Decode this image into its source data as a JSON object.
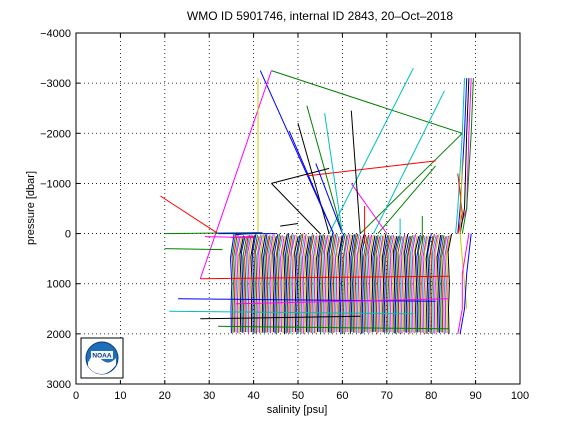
{
  "chart_data": {
    "type": "line",
    "title": "WMO ID 5901746, internal ID 2843, 20–Oct–2018",
    "xlabel": "salinity [psu]",
    "ylabel": "pressure [dbar]",
    "xlim": [
      0,
      100
    ],
    "ylim": [
      3000,
      -4000
    ],
    "y_reversed": true,
    "grid": true,
    "xticks": [
      0,
      10,
      20,
      30,
      40,
      50,
      60,
      70,
      80,
      90,
      100
    ],
    "xtick_labels": [
      "0",
      "10",
      "20",
      "30",
      "40",
      "50",
      "60",
      "70",
      "80",
      "90",
      "100"
    ],
    "yticks": [
      -4000,
      -3000,
      -2000,
      -1000,
      0,
      1000,
      2000,
      3000
    ],
    "ytick_labels": [
      "−4000",
      "−3000",
      "−2000",
      "−1000",
      "0",
      "1000",
      "2000",
      "3000"
    ],
    "profile_band": {
      "salinity_range": [
        35,
        84
      ],
      "pressure_range": [
        0,
        2000
      ],
      "profile_count": 140
    },
    "spike_segments": [
      {
        "color": "#0000ff",
        "x": [
          41.5,
          58
        ],
        "y": [
          -3250,
          0
        ]
      },
      {
        "color": "#008000",
        "x": [
          44,
          87
        ],
        "y": [
          -3250,
          -2000
        ]
      },
      {
        "color": "#008000",
        "x": [
          87,
          64
        ],
        "y": [
          -2000,
          0
        ]
      },
      {
        "color": "#ff00ff",
        "x": [
          28,
          44
        ],
        "y": [
          900,
          -3250
        ]
      },
      {
        "color": "#cccc00",
        "x": [
          41,
          41
        ],
        "y": [
          -3100,
          0
        ]
      },
      {
        "color": "#00bfbf",
        "x": [
          76,
          57
        ],
        "y": [
          -3300,
          0
        ]
      },
      {
        "color": "#00bfbf",
        "x": [
          83,
          67
        ],
        "y": [
          -2850,
          0
        ]
      },
      {
        "color": "#008000",
        "x": [
          52,
          60
        ],
        "y": [
          -2550,
          0
        ]
      },
      {
        "color": "#000000",
        "x": [
          50,
          57
        ],
        "y": [
          -2200,
          0
        ]
      },
      {
        "color": "#0000ff",
        "x": [
          48,
          58
        ],
        "y": [
          -2050,
          0
        ]
      },
      {
        "color": "#ff0000",
        "x": [
          52,
          81
        ],
        "y": [
          -1150,
          -1450
        ]
      },
      {
        "color": "#000000",
        "x": [
          44,
          57
        ],
        "y": [
          -1000,
          -1300
        ]
      },
      {
        "color": "#000000",
        "x": [
          44,
          55
        ],
        "y": [
          -1000,
          0
        ]
      },
      {
        "color": "#ff0000",
        "x": [
          19,
          32
        ],
        "y": [
          -750,
          0
        ]
      },
      {
        "color": "#008000",
        "x": [
          81,
          68
        ],
        "y": [
          -1350,
          0
        ]
      },
      {
        "color": "#ff00ff",
        "x": [
          62,
          70
        ],
        "y": [
          -1000,
          0
        ]
      },
      {
        "color": "#0000ff",
        "x": [
          54,
          60
        ],
        "y": [
          -1400,
          0
        ]
      },
      {
        "color": "#00bfbf",
        "x": [
          56,
          60
        ],
        "y": [
          -2400,
          0
        ]
      },
      {
        "color": "#000000",
        "x": [
          62,
          64
        ],
        "y": [
          -2450,
          0
        ]
      },
      {
        "color": "#008000",
        "x": [
          20,
          42
        ],
        "y": [
          0,
          -20
        ]
      },
      {
        "color": "#0000ff",
        "x": [
          32,
          45
        ],
        "y": [
          0,
          0
        ]
      },
      {
        "color": "#ff0000",
        "x": [
          35,
          40
        ],
        "y": [
          80,
          60
        ]
      },
      {
        "color": "#ff00ff",
        "x": [
          29,
          40
        ],
        "y": [
          60,
          80
        ]
      },
      {
        "color": "#0000ff",
        "x": [
          36,
          41
        ],
        "y": [
          20,
          -10
        ]
      },
      {
        "color": "#000000",
        "x": [
          46,
          50
        ],
        "y": [
          -150,
          -200
        ]
      },
      {
        "color": "#008000",
        "x": [
          20,
          33
        ],
        "y": [
          300,
          320
        ]
      },
      {
        "color": "#ff0000",
        "x": [
          28,
          84
        ],
        "y": [
          900,
          850
        ]
      },
      {
        "color": "#0000ff",
        "x": [
          23,
          81
        ],
        "y": [
          1300,
          1350
        ]
      },
      {
        "color": "#ff00ff",
        "x": [
          36,
          84
        ],
        "y": [
          1400,
          1300
        ]
      },
      {
        "color": "#00bfbf",
        "x": [
          21,
          76
        ],
        "y": [
          1550,
          1600
        ]
      },
      {
        "color": "#000000",
        "x": [
          28,
          64
        ],
        "y": [
          1700,
          1650
        ]
      },
      {
        "color": "#008000",
        "x": [
          32,
          84
        ],
        "y": [
          1850,
          1900
        ]
      },
      {
        "color": "#ff0000",
        "x": [
          65,
          65
        ],
        "y": [
          -550,
          200
        ]
      },
      {
        "color": "#008000",
        "x": [
          78,
          78
        ],
        "y": [
          -350,
          200
        ]
      },
      {
        "color": "#00bfbf",
        "x": [
          73,
          73
        ],
        "y": [
          -300,
          200
        ]
      }
    ],
    "deep_profiles": [
      {
        "color": "#ff00ff",
        "x": [
          89,
          88.5,
          88,
          86
        ],
        "y": [
          -3100,
          -2000,
          -500,
          0
        ]
      },
      {
        "color": "#0000ff",
        "x": [
          88,
          87.5,
          86.5,
          86
        ],
        "y": [
          -3100,
          -2000,
          -500,
          0
        ]
      },
      {
        "color": "#008000",
        "x": [
          89.5,
          89,
          88,
          87
        ],
        "y": [
          -3100,
          -2000,
          -500,
          0
        ]
      },
      {
        "color": "#000000",
        "x": [
          88.5,
          88,
          87.5,
          86.5
        ],
        "y": [
          -3100,
          -2000,
          -500,
          0
        ]
      },
      {
        "color": "#00bfbf",
        "x": [
          87.5,
          87,
          86,
          85.5
        ],
        "y": [
          -3100,
          -2000,
          -500,
          0
        ]
      },
      {
        "color": "#ff0000",
        "x": [
          86,
          86.5,
          87,
          86
        ],
        "y": [
          -1200,
          -800,
          -400,
          0
        ]
      },
      {
        "color": "#cccc00",
        "x": [
          88,
          87.5,
          86.5,
          87
        ],
        "y": [
          1500,
          1000,
          0,
          -1500
        ]
      },
      {
        "color": "#ff00ff",
        "x": [
          88.5,
          87,
          87,
          86
        ],
        "y": [
          0,
          800,
          1500,
          2000
        ]
      },
      {
        "color": "#0000ff",
        "x": [
          89,
          88,
          87.5,
          86.5
        ],
        "y": [
          0,
          800,
          1500,
          2000
        ]
      }
    ],
    "logo": "NOAA"
  }
}
